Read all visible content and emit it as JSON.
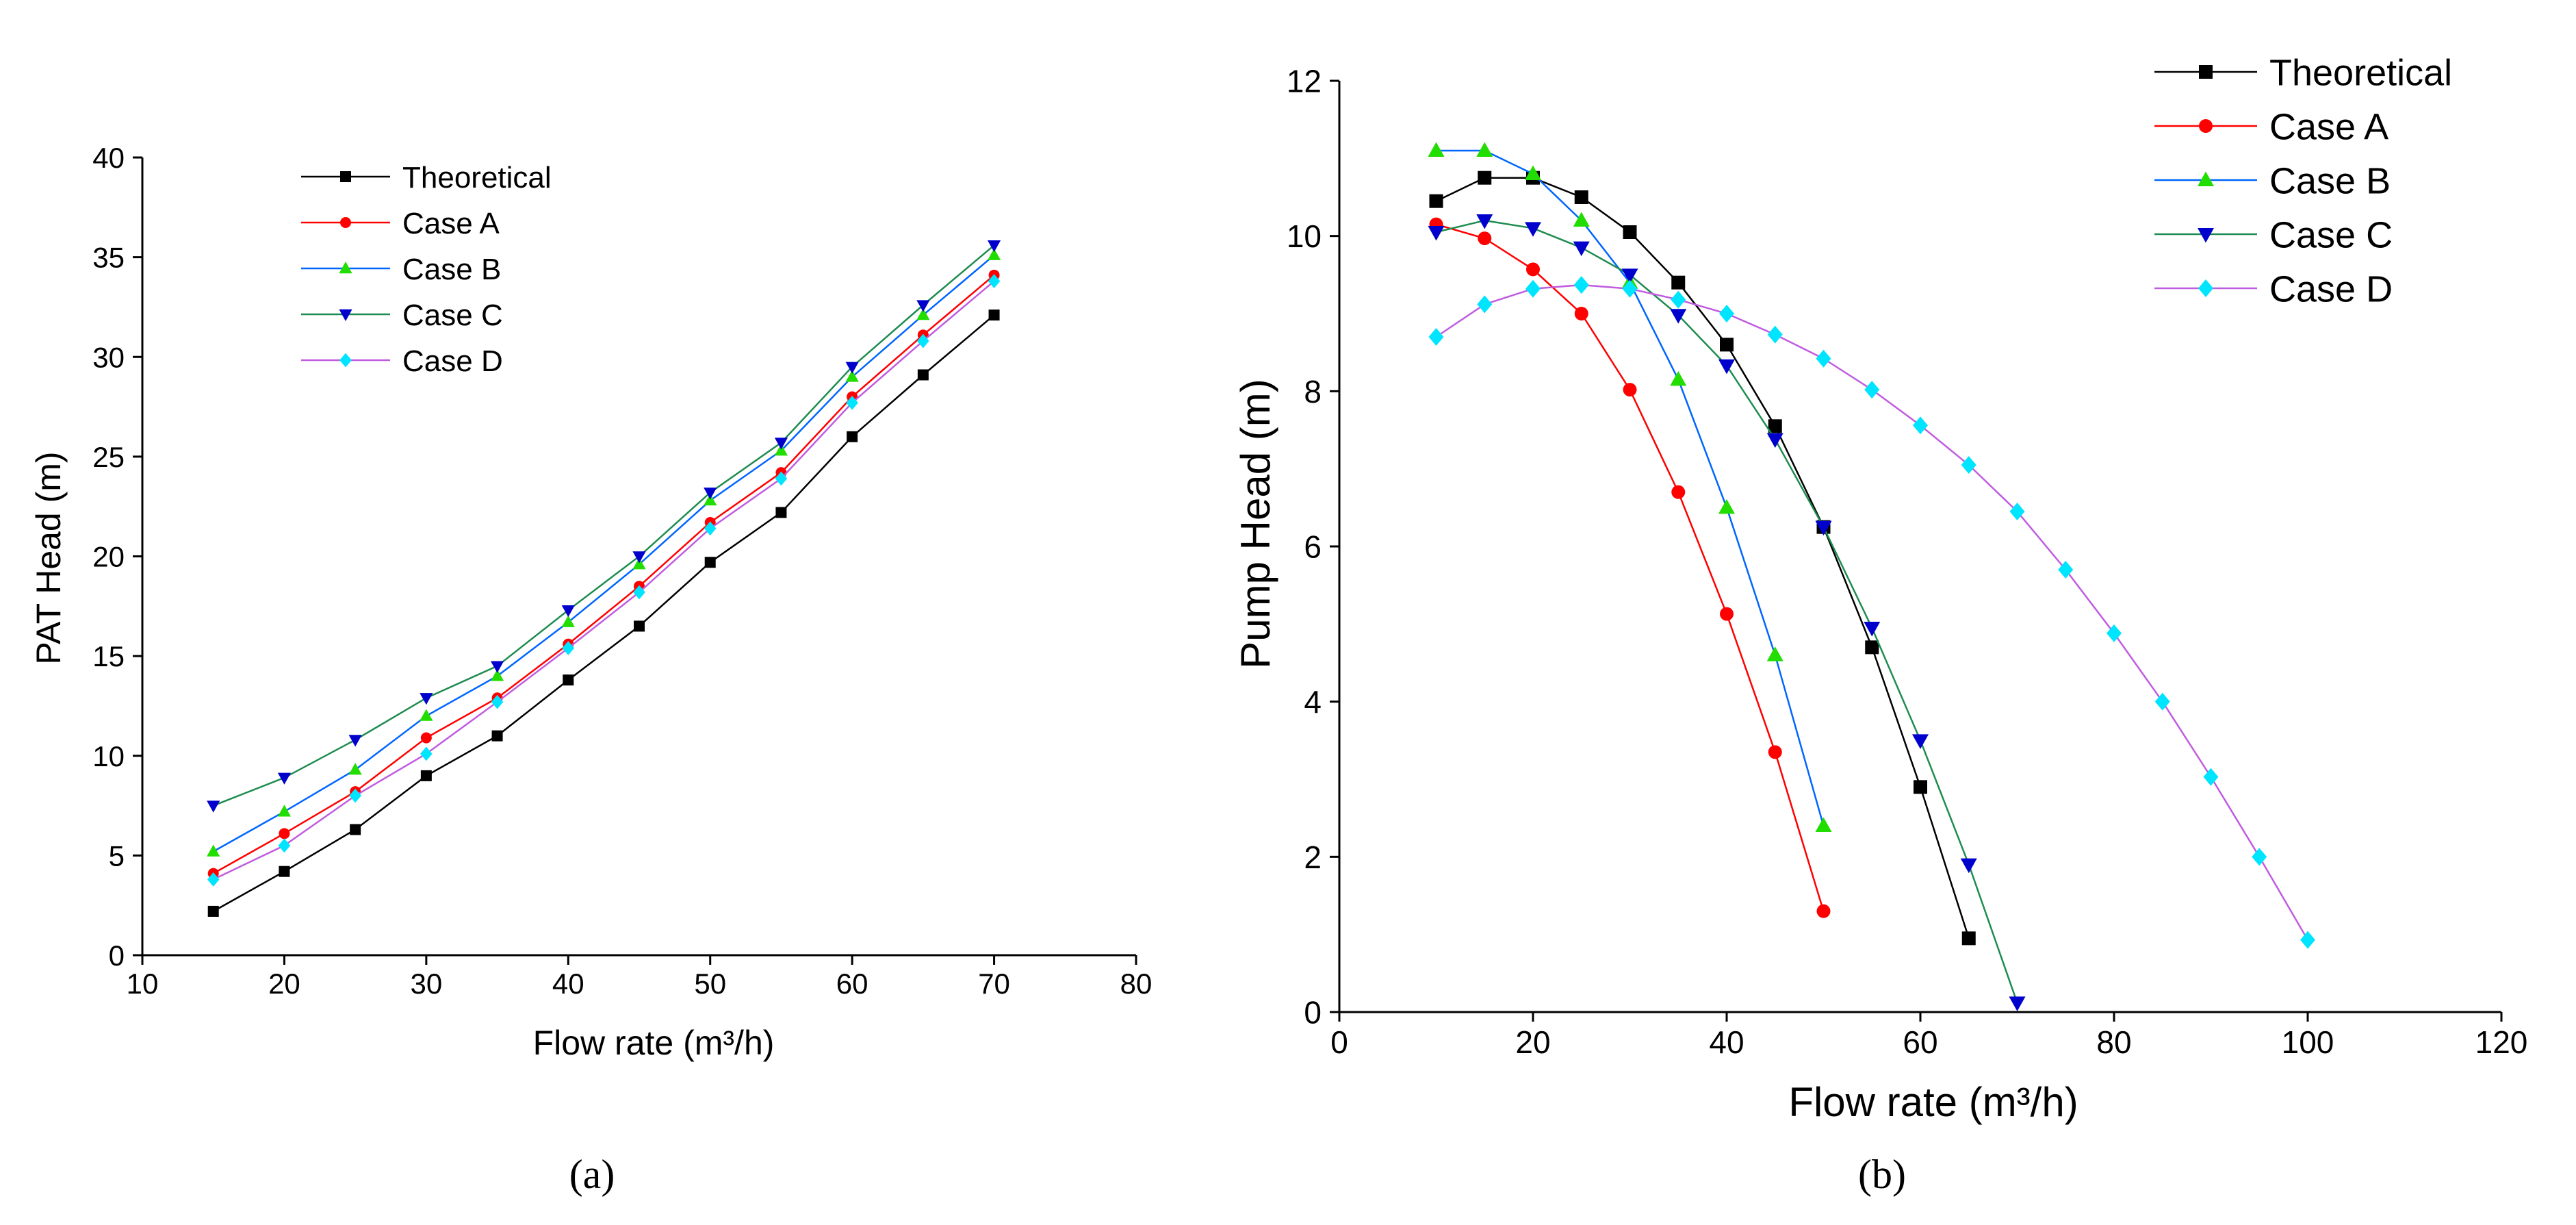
{
  "colors": {
    "theoretical": "#000000",
    "case_a": "#ff0000",
    "case_b": "#0066ff",
    "case_c": "#1e8c50",
    "case_c_marker": "#0000cc",
    "case_d": "#c05ce0",
    "case_d_marker": "#00e5ff",
    "case_b_marker": "#22dd00"
  },
  "chart_data": [
    {
      "type": "line",
      "caption": "(a)",
      "xlabel": "Flow rate (m³/h)",
      "ylabel": "PAT Head (m)",
      "xlim": [
        10,
        80
      ],
      "ylim": [
        0,
        40
      ],
      "xticks": [
        10,
        20,
        30,
        40,
        50,
        60,
        70,
        80
      ],
      "yticks": [
        0,
        5,
        10,
        15,
        20,
        25,
        30,
        35,
        40
      ],
      "legend_position": "top-left",
      "x": [
        15,
        20,
        25,
        30,
        35,
        40,
        45,
        50,
        55,
        60,
        65,
        70
      ],
      "series": [
        {
          "name": "Theoretical",
          "marker": "square",
          "values": [
            2.2,
            4.2,
            6.3,
            9.0,
            11.0,
            13.8,
            16.5,
            19.7,
            22.2,
            26.0,
            29.1,
            32.1
          ]
        },
        {
          "name": "Case A",
          "marker": "circle",
          "values": [
            4.1,
            6.1,
            8.2,
            10.9,
            12.9,
            15.6,
            18.5,
            21.7,
            24.2,
            28.0,
            31.1,
            34.1
          ]
        },
        {
          "name": "Case B",
          "marker": "triangle-up",
          "values": [
            5.2,
            7.2,
            9.3,
            12.0,
            14.0,
            16.7,
            19.6,
            22.8,
            25.3,
            29.0,
            32.1,
            35.1
          ]
        },
        {
          "name": "Case C",
          "marker": "triangle-down",
          "values": [
            7.5,
            8.9,
            10.8,
            12.9,
            14.5,
            17.3,
            20.0,
            23.2,
            25.7,
            29.5,
            32.6,
            35.6
          ]
        },
        {
          "name": "Case D",
          "marker": "diamond",
          "values": [
            3.8,
            5.5,
            8.0,
            10.1,
            12.7,
            15.4,
            18.2,
            21.4,
            23.9,
            27.7,
            30.8,
            33.8
          ]
        }
      ]
    },
    {
      "type": "line",
      "caption": "(b)",
      "xlabel": "Flow rate (m³/h)",
      "ylabel": "Pump Head (m)",
      "xlim": [
        0,
        120
      ],
      "ylim": [
        0,
        12
      ],
      "xticks": [
        0,
        20,
        40,
        60,
        80,
        100,
        120
      ],
      "yticks": [
        0,
        2,
        4,
        6,
        8,
        10,
        12
      ],
      "legend_position": "top-right",
      "series": [
        {
          "name": "Theoretical",
          "marker": "square",
          "x": [
            10,
            15,
            20,
            25,
            30,
            35,
            40,
            45,
            50,
            55,
            60,
            65
          ],
          "values": [
            10.45,
            10.75,
            10.75,
            10.5,
            10.05,
            9.4,
            8.6,
            7.55,
            6.25,
            4.7,
            2.9,
            0.95
          ]
        },
        {
          "name": "Case A",
          "marker": "circle",
          "x": [
            10,
            15,
            20,
            25,
            30,
            35,
            40,
            45,
            50
          ],
          "values": [
            10.15,
            9.97,
            9.57,
            9.0,
            8.02,
            6.7,
            5.13,
            3.35,
            1.3
          ]
        },
        {
          "name": "Case B",
          "marker": "triangle-up",
          "x": [
            10,
            15,
            20,
            25,
            30,
            35,
            40,
            45,
            50
          ],
          "values": [
            11.1,
            11.1,
            10.8,
            10.2,
            9.4,
            8.15,
            6.5,
            4.6,
            2.4
          ]
        },
        {
          "name": "Case C",
          "marker": "triangle-down",
          "x": [
            10,
            15,
            20,
            25,
            30,
            35,
            40,
            45,
            50,
            55,
            60,
            65,
            70
          ],
          "values": [
            10.05,
            10.2,
            10.1,
            9.85,
            9.5,
            8.98,
            8.33,
            7.38,
            6.25,
            4.95,
            3.5,
            1.9,
            0.12
          ]
        },
        {
          "name": "Case D",
          "marker": "diamond",
          "x": [
            10,
            15,
            20,
            25,
            30,
            35,
            40,
            45,
            50,
            55,
            60,
            65,
            70,
            75,
            80,
            85,
            90,
            95,
            100
          ],
          "values": [
            8.7,
            9.12,
            9.32,
            9.37,
            9.32,
            9.18,
            9.0,
            8.73,
            8.42,
            8.02,
            7.56,
            7.05,
            6.45,
            5.7,
            4.88,
            4.0,
            3.03,
            2.0,
            0.93
          ]
        }
      ]
    }
  ]
}
